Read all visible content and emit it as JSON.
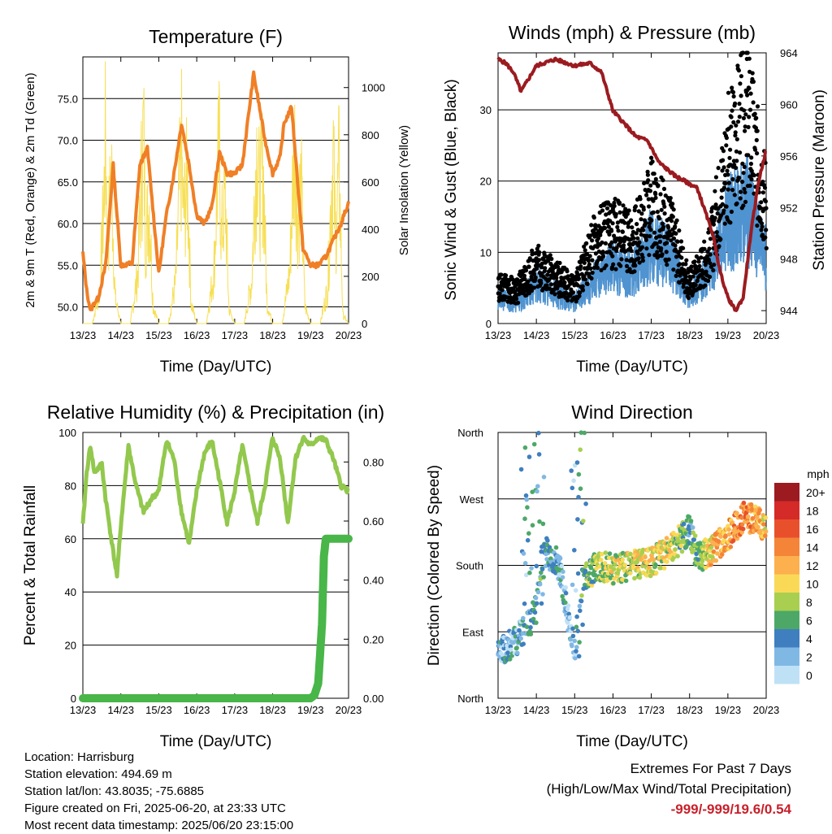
{
  "x_ticks": [
    "13/23",
    "14/23",
    "15/23",
    "16/23",
    "17/23",
    "18/23",
    "19/23",
    "20/23"
  ],
  "x_label": "Time (Day/UTC)",
  "footer": {
    "location": "Location: Harrisburg",
    "elevation": "Station elevation: 494.69 m",
    "latlon": "Station lat/lon: 43.8035; -75.6885",
    "created": "Figure created on Fri, 2025-06-20, at 23:33 UTC",
    "timestamp": "Most recent data timestamp: 2025/06/20 23:15:00"
  },
  "extremes": {
    "title": "Extremes For Past 7 Days",
    "subtitle": "(High/Low/Max Wind/Total Precipitation)",
    "values": "-999/-999/19.6/0.54",
    "color": "#c8202b"
  },
  "chart_data": [
    {
      "type": "line",
      "title": "Temperature (F)",
      "xlabel": "Time (Day/UTC)",
      "ylabel": "2m & 9m T (Red, Orange) & 2m Td (Green)",
      "ylabel_right": "Solar Insolation (Yellow)",
      "ylim": [
        48,
        80
      ],
      "ylim_right": [
        0,
        1130
      ],
      "yticks": [
        "50.0",
        "55.0",
        "60.0",
        "65.0",
        "70.0",
        "75.0"
      ],
      "yticks_right": [
        "0",
        "200",
        "400",
        "600",
        "800",
        "1000"
      ],
      "series": [
        {
          "color": "#f07f26",
          "x": [
            0,
            0.1,
            0.2,
            0.3,
            0.4,
            0.6,
            0.8,
            1.0,
            1.3,
            1.5,
            1.7,
            2.0,
            2.2,
            2.4,
            2.6,
            2.8,
            3.0,
            3.2,
            3.4,
            3.6,
            3.8,
            4.0,
            4.2,
            4.5,
            4.8,
            5.0,
            5.2,
            5.3,
            5.5,
            5.8,
            6.0,
            6.2,
            6.4,
            6.6,
            6.8,
            7.0
          ],
          "values": [
            56.5,
            52.0,
            49.5,
            50.5,
            51.0,
            55.0,
            67.0,
            55.0,
            55.2,
            67.0,
            69.0,
            54.0,
            61.0,
            66.0,
            72.0,
            67.0,
            61.0,
            60.0,
            62.0,
            68.5,
            66.0,
            66.0,
            67.0,
            78.0,
            70.0,
            66.0,
            68.0,
            72.0,
            74.0,
            57.0,
            55.0,
            55.0,
            56.0,
            58.0,
            60.0,
            62.5
          ]
        },
        {
          "color": "#f7df55",
          "x": [
            0,
            0.25,
            0.45,
            0.55,
            0.6,
            0.65,
            0.75,
            0.85,
            1.0,
            1.25,
            1.45,
            1.55,
            1.6,
            1.65,
            1.75,
            1.85,
            2.0,
            2.25,
            2.45,
            2.55,
            2.6,
            2.65,
            2.75,
            2.85,
            3.0,
            3.25,
            3.45,
            3.55,
            3.6,
            3.65,
            3.75,
            3.85,
            4.0,
            4.25,
            4.45,
            4.55,
            4.6,
            4.65,
            4.75,
            4.85,
            5.0,
            5.25,
            5.45,
            5.55,
            5.6,
            5.65,
            5.75,
            5.85,
            6.0,
            6.25,
            6.45,
            6.55,
            6.6,
            6.65,
            6.75,
            6.85,
            7.0
          ],
          "values": [
            0,
            0,
            200,
            700,
            1100,
            400,
            900,
            150,
            0,
            0,
            300,
            900,
            1120,
            500,
            700,
            100,
            0,
            0,
            250,
            800,
            1000,
            600,
            850,
            120,
            0,
            0,
            300,
            850,
            1000,
            500,
            750,
            80,
            0,
            0,
            250,
            900,
            1100,
            700,
            900,
            120,
            0,
            0,
            300,
            950,
            1050,
            600,
            800,
            100,
            0,
            0,
            200,
            800,
            980,
            500,
            900,
            50,
            0
          ]
        }
      ]
    },
    {
      "type": "line",
      "title": "Winds (mph) & Pressure (mb)",
      "xlabel": "Time (Day/UTC)",
      "ylabel": "Sonic Wind & Gust (Blue, Black)",
      "ylabel_right": "Station Pressure (Maroon)",
      "ylim": [
        0,
        38
      ],
      "ylim_right": [
        943,
        964
      ],
      "yticks": [
        "0",
        "10",
        "20",
        "30"
      ],
      "yticks_right": [
        "944",
        "948",
        "952",
        "956",
        "960",
        "964"
      ],
      "series": [
        {
          "color": "#4f93d0",
          "x": [
            0,
            0.5,
            1.0,
            1.5,
            2.0,
            2.5,
            3.0,
            3.5,
            4.0,
            4.5,
            5.0,
            5.5,
            6.0,
            6.5,
            7.0
          ],
          "values": [
            3.5,
            3.0,
            5.5,
            4.0,
            3.0,
            6.0,
            8.0,
            7.0,
            11.0,
            9.0,
            4.0,
            7.0,
            14.0,
            16.0,
            9.0
          ]
        },
        {
          "color": "#000000",
          "x": [
            0,
            0.5,
            1.0,
            1.5,
            2.0,
            2.5,
            3.0,
            3.5,
            4.0,
            4.5,
            5.0,
            5.5,
            6.0,
            6.5,
            7.0
          ],
          "values": [
            5.5,
            5.0,
            9.0,
            7.0,
            5.0,
            12.0,
            14.0,
            12.0,
            18.0,
            14.0,
            6.0,
            10.0,
            25.0,
            31.0,
            18.0
          ]
        },
        {
          "color": "#9b1b20",
          "x": [
            0,
            0.2,
            0.4,
            0.6,
            1.0,
            1.5,
            2.0,
            2.4,
            2.7,
            3.0,
            3.3,
            3.6,
            3.9,
            4.2,
            4.6,
            4.9,
            5.2,
            5.6,
            5.8,
            6.0,
            6.2,
            6.4,
            6.6,
            6.8,
            7.0
          ],
          "values": [
            963.5,
            963.2,
            962.5,
            961.0,
            963.0,
            963.5,
            963.0,
            963.2,
            962.5,
            959.5,
            958.5,
            957.5,
            957.2,
            955.5,
            954.5,
            954.0,
            953.5,
            950.0,
            947.0,
            945.0,
            944.0,
            945.0,
            950.0,
            954.0,
            956.5
          ]
        }
      ]
    },
    {
      "type": "line",
      "title": "Relative Humidity (%) & Precipitation (in)",
      "xlabel": "Time (Day/UTC)",
      "ylabel": "Percent & Total Rainfall",
      "ylim": [
        0,
        100
      ],
      "ylim_right": [
        0,
        0.9
      ],
      "yticks": [
        "0",
        "20",
        "40",
        "60",
        "80",
        "100"
      ],
      "yticks_right": [
        "0.00",
        "0.20",
        "0.40",
        "0.60",
        "0.80"
      ],
      "series": [
        {
          "color": "#92c84d",
          "x": [
            0,
            0.1,
            0.2,
            0.3,
            0.5,
            0.6,
            0.8,
            0.9,
            1.0,
            1.2,
            1.4,
            1.6,
            1.8,
            2.0,
            2.2,
            2.4,
            2.6,
            2.8,
            3.0,
            3.2,
            3.4,
            3.6,
            3.8,
            4.0,
            4.2,
            4.4,
            4.6,
            4.8,
            5.0,
            5.2,
            5.4,
            5.6,
            5.8,
            6.0,
            6.2,
            6.4,
            6.6,
            6.8,
            7.0
          ],
          "values": [
            65,
            85,
            95,
            85,
            88,
            75,
            55,
            46,
            65,
            95,
            80,
            70,
            75,
            78,
            97,
            90,
            70,
            58,
            78,
            92,
            97,
            82,
            66,
            78,
            95,
            80,
            66,
            80,
            98,
            90,
            66,
            90,
            98,
            95,
            98,
            97,
            90,
            80,
            78
          ]
        },
        {
          "color": "#48b648",
          "x": [
            0,
            6.0,
            6.1,
            6.2,
            6.3,
            6.35,
            6.4,
            6.5,
            7.0
          ],
          "values": [
            0.0,
            0.0,
            0.01,
            0.05,
            0.25,
            0.48,
            0.54,
            0.54,
            0.54
          ]
        }
      ]
    },
    {
      "type": "scatter",
      "title": "Wind Direction",
      "xlabel": "Time (Day/UTC)",
      "ylabel": "Direction (Colored By Speed)",
      "ylim": [
        0,
        360
      ],
      "yticks": [
        "North",
        "East",
        "South",
        "West",
        "North"
      ],
      "colorbar": {
        "label": "mph",
        "labels": [
          "20+",
          "18",
          "16",
          "14",
          "12",
          "10",
          "8",
          "6",
          "4",
          "2",
          "0"
        ],
        "colors": [
          "#9b1b20",
          "#d42a28",
          "#e8502c",
          "#f48437",
          "#fcb04e",
          "#fad956",
          "#a8cf50",
          "#4da868",
          "#3f7fbf",
          "#80b8e4",
          "#bfe1f6"
        ]
      }
    }
  ]
}
